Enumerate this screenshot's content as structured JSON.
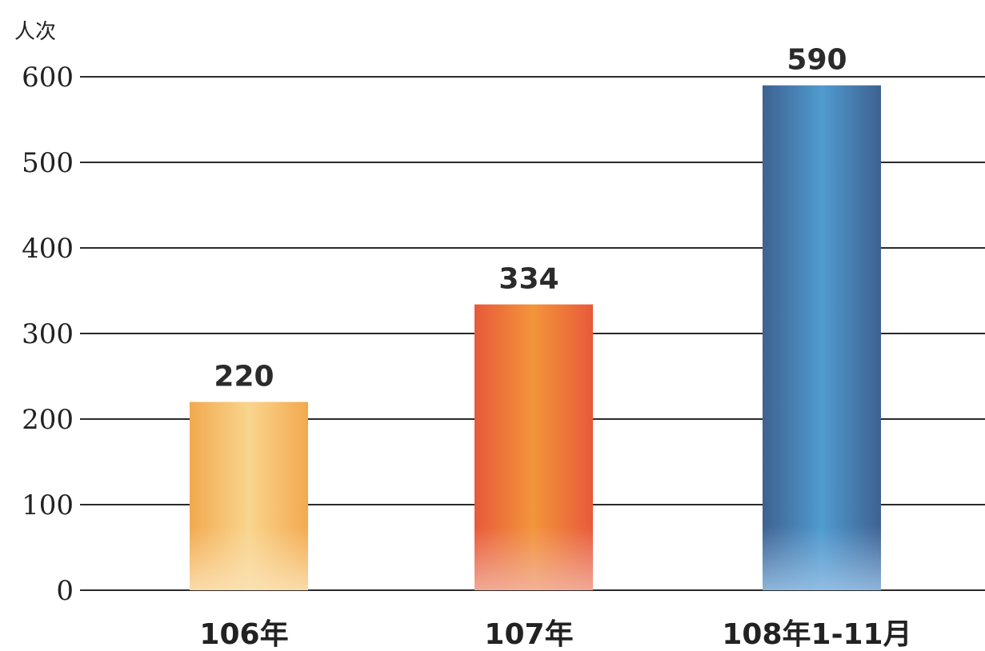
{
  "chart_data": {
    "type": "bar",
    "ylabel": "人次",
    "categories": [
      "106年",
      "107年",
      "108年1-11月"
    ],
    "values": [
      220,
      334,
      590
    ],
    "value_labels": [
      "220",
      "334",
      "590"
    ],
    "ylim": [
      0,
      600
    ],
    "yticks": [
      0,
      100,
      200,
      300,
      400,
      500,
      600
    ],
    "ytick_labels": [
      "0",
      "100",
      "200",
      "300",
      "400",
      "500",
      "600"
    ],
    "grid": true,
    "legend": "none",
    "bar_colors": [
      {
        "edge": "#f2a94e",
        "center": "#f9d58e",
        "base": "#fbe3b8"
      },
      {
        "edge": "#e8593a",
        "center": "#f3953a",
        "base": "#f2b6a6"
      },
      {
        "edge": "#3f6192",
        "center": "#4f9bcf",
        "base": "#9cc3e6"
      }
    ]
  }
}
